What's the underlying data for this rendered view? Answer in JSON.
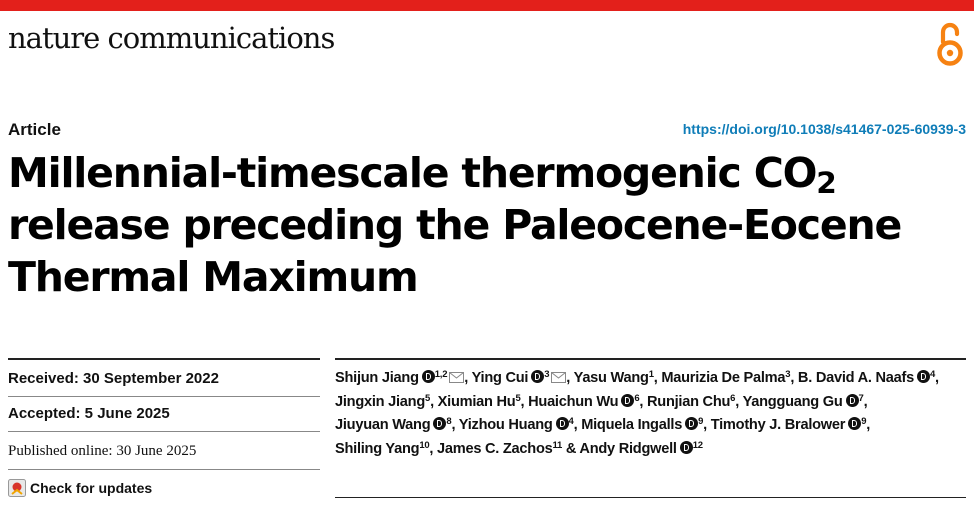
{
  "brand": {
    "bar_color": "#e3201b",
    "journal_name": "nature communications",
    "open_access_icon": "open-access-icon",
    "oa_color": "#f68212"
  },
  "article": {
    "type_label": "Article",
    "doi": "https://doi.org/10.1038/s41467-025-60939-3",
    "doi_color": "#0f7db8",
    "title_part1": "Millennial-timescale thermogenic CO",
    "title_sub": "2",
    "title_part2": "release preceding the Paleocene-Eocene Thermal Maximum"
  },
  "dates": {
    "received": "Received: 30 September 2022",
    "accepted": "Accepted: 5 June 2025",
    "published": "Published online: 30 June 2025"
  },
  "updates": {
    "label": "Check for updates",
    "icon": "check-for-updates-icon"
  },
  "authors": [
    {
      "name": "Shijun Jiang",
      "orcid": true,
      "aff": "1,2",
      "mail": true,
      "sep": ", "
    },
    {
      "name": "Ying Cui",
      "orcid": true,
      "aff": "3",
      "mail": true,
      "sep": ", "
    },
    {
      "name": "Yasu Wang",
      "orcid": false,
      "aff": "1",
      "mail": false,
      "sep": ", "
    },
    {
      "name": "Maurizia De Palma",
      "orcid": false,
      "aff": "3",
      "mail": false,
      "sep": ", "
    },
    {
      "name": "B. David A. Naafs",
      "orcid": true,
      "aff": "4",
      "mail": false,
      "sep": ", "
    },
    {
      "name": "Jingxin Jiang",
      "orcid": false,
      "aff": "5",
      "mail": false,
      "sep": ", "
    },
    {
      "name": "Xiumian Hu",
      "orcid": false,
      "aff": "5",
      "mail": false,
      "sep": ", "
    },
    {
      "name": "Huaichun Wu",
      "orcid": true,
      "aff": "6",
      "mail": false,
      "sep": ", "
    },
    {
      "name": "Runjian Chu",
      "orcid": false,
      "aff": "6",
      "mail": false,
      "sep": ", "
    },
    {
      "name": "Yangguang Gu",
      "orcid": true,
      "aff": "7",
      "mail": false,
      "sep": ", "
    },
    {
      "name": "Jiuyuan Wang",
      "orcid": true,
      "aff": "8",
      "mail": false,
      "sep": ", "
    },
    {
      "name": "Yizhou Huang",
      "orcid": true,
      "aff": "4",
      "mail": false,
      "sep": ", "
    },
    {
      "name": "Miquela Ingalls",
      "orcid": true,
      "aff": "9",
      "mail": false,
      "sep": ", "
    },
    {
      "name": "Timothy J. Bralower",
      "orcid": true,
      "aff": "9",
      "mail": false,
      "sep": ", "
    },
    {
      "name": "Shiling Yang",
      "orcid": false,
      "aff": "10",
      "mail": false,
      "sep": ", "
    },
    {
      "name": "James C. Zachos",
      "orcid": false,
      "aff": "11",
      "mail": false,
      "sep": " & "
    },
    {
      "name": "Andy Ridgwell",
      "orcid": true,
      "aff": "12",
      "mail": false,
      "sep": ""
    }
  ]
}
